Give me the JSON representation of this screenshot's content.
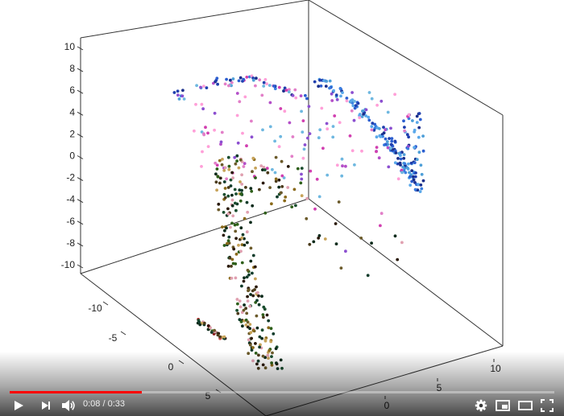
{
  "player": {
    "current_time": "0:08",
    "separator": "/",
    "duration": "0:33",
    "progress_fraction": 0.242,
    "colors": {
      "played": "#ff0000",
      "icons": "#ffffff"
    },
    "controls": [
      "play-icon",
      "next-icon",
      "volume-icon",
      "settings-icon",
      "miniplayer-icon",
      "theater-icon",
      "fullscreen-icon"
    ]
  },
  "plot": {
    "z_ticks": [
      "10",
      "8",
      "6",
      "4",
      "2",
      "0",
      "-2",
      "-4",
      "-6",
      "-8",
      "-10"
    ],
    "y_ticks": [
      "-10",
      "-5",
      "0",
      "5"
    ],
    "x_ticks": [
      "0",
      "5",
      "10"
    ]
  }
}
